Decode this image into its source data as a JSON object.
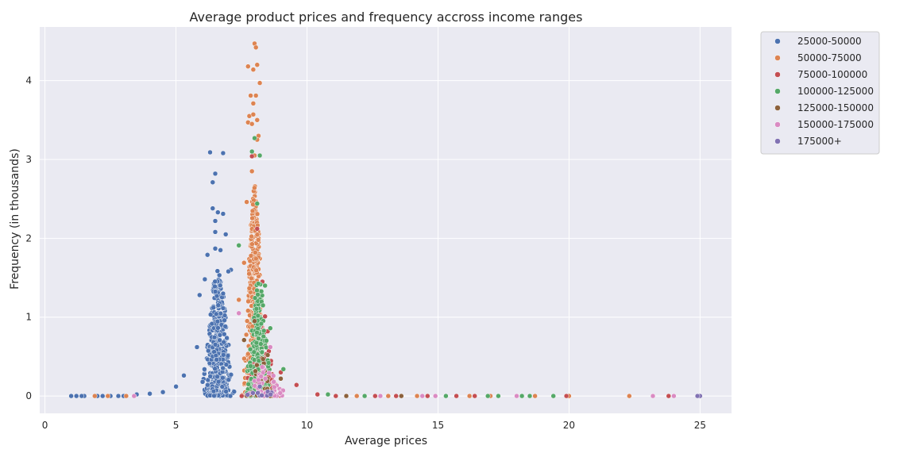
{
  "chart_data": {
    "type": "scatter",
    "title": "Average product prices and frequency accross income ranges",
    "xlabel": "Average prices",
    "ylabel": "Frequency (in thousands)",
    "xlim": [
      -0.2,
      26.2
    ],
    "ylim": [
      -0.22,
      4.68
    ],
    "xticks": [
      0,
      5,
      10,
      15,
      20,
      25
    ],
    "yticks": [
      0,
      1,
      2,
      3,
      4
    ],
    "grid": true,
    "background": "#eaeaf2",
    "legend_position": "outside-right",
    "series": [
      {
        "name": "25000-50000",
        "color": "#4c72b0",
        "anchors": [
          [
            6.3,
            3.09
          ],
          [
            6.8,
            3.08
          ],
          [
            6.5,
            2.82
          ],
          [
            6.4,
            2.71
          ],
          [
            6.4,
            2.38
          ],
          [
            6.6,
            2.33
          ],
          [
            6.8,
            2.31
          ],
          [
            6.5,
            2.22
          ],
          [
            6.5,
            2.08
          ],
          [
            6.9,
            2.05
          ],
          [
            6.2,
            1.79
          ],
          [
            6.5,
            1.87
          ],
          [
            6.7,
            1.85
          ],
          [
            7.1,
            1.6
          ],
          [
            7.0,
            1.58
          ],
          [
            6.1,
            1.48
          ],
          [
            5.9,
            1.28
          ],
          [
            5.8,
            0.62
          ],
          [
            5.3,
            0.26
          ],
          [
            5.0,
            0.12
          ],
          [
            4.5,
            0.05
          ],
          [
            4.0,
            0.03
          ],
          [
            3.5,
            0.02
          ],
          [
            3.0,
            0.0
          ],
          [
            2.5,
            0.0
          ],
          [
            2.0,
            0.0
          ],
          [
            1.5,
            0.0
          ],
          [
            1.0,
            0.0
          ],
          [
            1.2,
            0.0
          ],
          [
            1.4,
            0.0
          ],
          [
            2.2,
            0.0
          ],
          [
            2.8,
            0.0
          ]
        ],
        "core": {
          "center": 6.6,
          "spread": 0.38,
          "height": 1.6,
          "count": 460
        }
      },
      {
        "name": "50000-75000",
        "color": "#dd8452",
        "anchors": [
          [
            8.0,
            4.47
          ],
          [
            8.05,
            4.42
          ],
          [
            7.75,
            4.18
          ],
          [
            7.95,
            4.14
          ],
          [
            8.1,
            4.2
          ],
          [
            8.2,
            3.97
          ],
          [
            7.85,
            3.81
          ],
          [
            8.05,
            3.81
          ],
          [
            7.95,
            3.71
          ],
          [
            7.8,
            3.55
          ],
          [
            7.95,
            3.57
          ],
          [
            8.1,
            3.5
          ],
          [
            7.75,
            3.47
          ],
          [
            7.9,
            3.45
          ],
          [
            8.15,
            3.3
          ],
          [
            8.1,
            3.25
          ],
          [
            8.0,
            3.05
          ],
          [
            7.9,
            2.85
          ],
          [
            7.7,
            2.46
          ],
          [
            7.6,
            1.69
          ],
          [
            7.4,
            1.22
          ],
          [
            22.3,
            0.0
          ],
          [
            17.0,
            0.0
          ],
          [
            18.7,
            0.0
          ],
          [
            20.0,
            0.0
          ],
          [
            14.2,
            0.0
          ],
          [
            13.1,
            0.0
          ],
          [
            11.9,
            0.0
          ],
          [
            16.2,
            0.0
          ],
          [
            1.9,
            0.0
          ],
          [
            2.4,
            0.0
          ],
          [
            3.1,
            0.0
          ]
        ],
        "core": {
          "center": 8.0,
          "spread": 0.26,
          "height": 2.7,
          "count": 520
        }
      },
      {
        "name": "75000-100000",
        "color": "#c44e52",
        "anchors": [
          [
            7.9,
            3.04
          ],
          [
            8.1,
            2.12
          ],
          [
            8.3,
            1.45
          ],
          [
            8.4,
            1.01
          ],
          [
            8.5,
            0.82
          ],
          [
            9.0,
            0.3
          ],
          [
            9.6,
            0.14
          ],
          [
            19.9,
            0.0
          ],
          [
            23.8,
            0.0
          ],
          [
            15.7,
            0.0
          ],
          [
            16.4,
            0.0
          ],
          [
            14.6,
            0.0
          ],
          [
            13.4,
            0.0
          ],
          [
            12.6,
            0.0
          ],
          [
            11.1,
            0.0
          ],
          [
            10.4,
            0.02
          ]
        ],
        "core": {
          "center": 8.25,
          "spread": 0.38,
          "height": 0.9,
          "count": 220
        }
      },
      {
        "name": "100000-125000",
        "color": "#55a868",
        "anchors": [
          [
            8.2,
            3.05
          ],
          [
            8.0,
            3.27
          ],
          [
            7.9,
            3.1
          ],
          [
            8.1,
            2.44
          ],
          [
            7.4,
            1.91
          ],
          [
            8.4,
            1.4
          ],
          [
            8.6,
            0.86
          ],
          [
            9.1,
            0.34
          ],
          [
            17.3,
            0.0
          ],
          [
            18.2,
            0.0
          ],
          [
            18.5,
            0.0
          ],
          [
            19.4,
            0.0
          ],
          [
            15.3,
            0.0
          ],
          [
            16.9,
            0.0
          ],
          [
            12.2,
            0.0
          ],
          [
            10.8,
            0.02
          ]
        ],
        "core": {
          "center": 8.15,
          "spread": 0.3,
          "height": 1.5,
          "count": 260
        }
      },
      {
        "name": "125000-150000",
        "color": "#8c613c",
        "anchors": [
          [
            8.0,
            0.95
          ],
          [
            8.5,
            0.52
          ],
          [
            9.0,
            0.22
          ],
          [
            7.6,
            0.71
          ],
          [
            13.6,
            0.0
          ],
          [
            11.5,
            0.0
          ]
        ],
        "core": {
          "center": 8.3,
          "spread": 0.4,
          "height": 0.5,
          "count": 40
        }
      },
      {
        "name": "150000-175000",
        "color": "#da8bc3",
        "anchors": [
          [
            7.4,
            1.05
          ],
          [
            8.6,
            0.62
          ],
          [
            23.2,
            0.0
          ],
          [
            24.0,
            0.0
          ],
          [
            18.0,
            0.0
          ],
          [
            14.9,
            0.0
          ],
          [
            14.4,
            0.0
          ],
          [
            12.8,
            0.0
          ],
          [
            3.4,
            0.0
          ]
        ],
        "core": {
          "center": 8.4,
          "spread": 0.45,
          "height": 0.4,
          "count": 50
        }
      },
      {
        "name": "175000+",
        "color": "#8172b3",
        "anchors": [
          [
            25.0,
            0.0
          ],
          [
            24.9,
            0.0
          ],
          [
            8.2,
            0.12
          ]
        ],
        "core": {
          "center": 8.2,
          "spread": 0.5,
          "height": 0.1,
          "count": 10
        }
      }
    ]
  }
}
